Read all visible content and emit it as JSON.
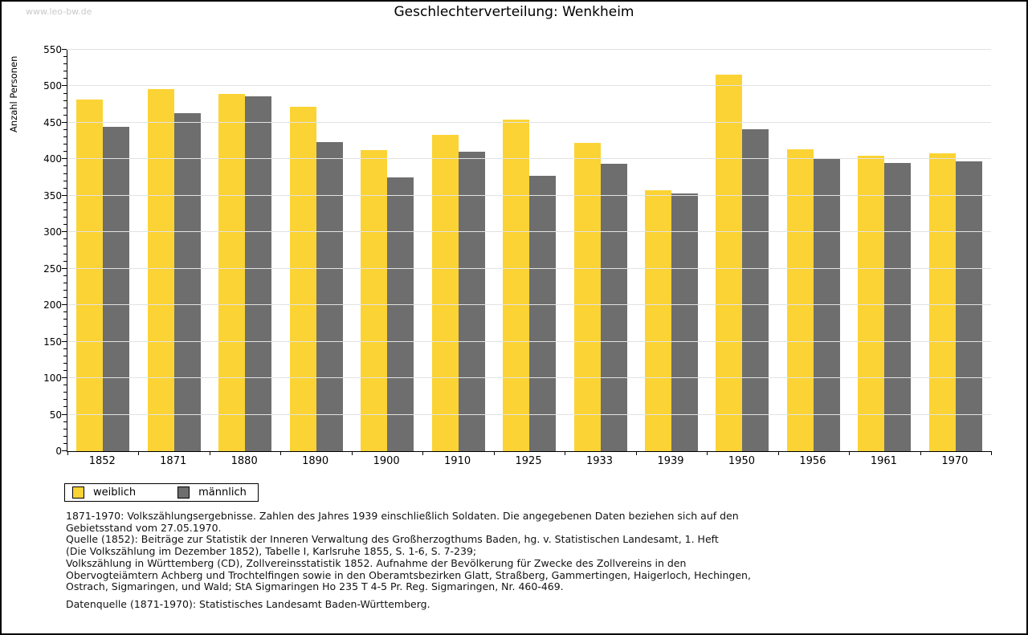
{
  "watermark": "www.leo-bw.de",
  "header": {
    "title": "Geschlechterverteilung: Wenkheim"
  },
  "chart_data": {
    "type": "bar",
    "title": "Geschlechterverteilung: Wenkheim",
    "xlabel": "",
    "ylabel": "Anzahl Personen",
    "categories": [
      "1852",
      "1871",
      "1880",
      "1890",
      "1900",
      "1910",
      "1925",
      "1933",
      "1939",
      "1950",
      "1956",
      "1961",
      "1970"
    ],
    "series": [
      {
        "name": "weiblich",
        "color": "#fbd334",
        "values": [
          482,
          496,
          489,
          472,
          413,
          433,
          454,
          422,
          358,
          516,
          414,
          405,
          408
        ]
      },
      {
        "name": "männlich",
        "color": "#6e6e6e",
        "values": [
          444,
          463,
          486,
          423,
          375,
          410,
          377,
          394,
          353,
          441,
          400,
          395,
          397
        ]
      }
    ],
    "ylim": [
      0,
      550
    ],
    "y_major_step": 50,
    "y_minor_step": 10,
    "grid": "horizontal",
    "legend_position": "bottom-left"
  },
  "legend": {
    "items": [
      {
        "label": "weiblich",
        "color": "#fbd334"
      },
      {
        "label": "männlich",
        "color": "#6e6e6e"
      }
    ]
  },
  "footer": {
    "lines": [
      "1871-1970: Volkszählungsergebnisse. Zahlen des Jahres 1939 einschließlich Soldaten. Die angegebenen Daten beziehen sich auf den",
      "Gebietsstand vom 27.05.1970.",
      "Quelle (1852): Beiträge zur Statistik der Inneren Verwaltung des Großherzogthums Baden, hg. v. Statistischen Landesamt, 1. Heft",
      "(Die Volkszählung im Dezember 1852), Tabelle I, Karlsruhe 1855, S. 1-6, S. 7-239;",
      "Volkszählung in Württemberg (CD), Zollvereinsstatistik 1852. Aufnahme der Bevölkerung für Zwecke des Zollvereins in den",
      "Obervogteiämtern Achberg und Trochtelfingen sowie in den Oberamtsbezirken Glatt, Straßberg, Gammertingen, Haigerloch, Hechingen,",
      "Ostrach, Sigmaringen, und Wald; StA Sigmaringen Ho 235 T 4-5 Pr. Reg. Sigmaringen, Nr. 460-469."
    ],
    "source_line": "Datenquelle (1871-1970): Statistisches Landesamt Baden-Württemberg."
  },
  "colors": {
    "weiblich": "#fbd334",
    "maennlich": "#6e6e6e",
    "gridline": "#e2e2e2",
    "watermark": "#c9c9c9"
  }
}
